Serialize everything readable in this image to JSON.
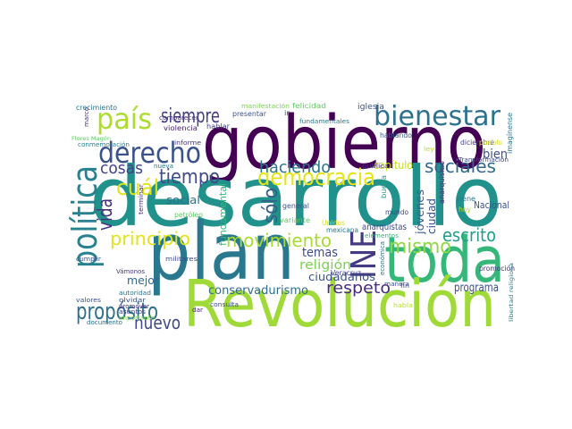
{
  "chart_data": {
    "type": "wordcloud",
    "background": "#ffffff",
    "words": [
      {
        "text": "gobierno",
        "color": "#440154"
      },
      {
        "text": "desarrollo",
        "color": "#21918c"
      },
      {
        "text": "plan",
        "color": "#2a788e"
      },
      {
        "text": "toda",
        "color": "#35b779"
      },
      {
        "text": "Revolución",
        "color": "#a0da39"
      },
      {
        "text": "política",
        "color": "#26828e"
      },
      {
        "text": "país",
        "color": "#addc30"
      },
      {
        "text": "siempre",
        "color": "#433e85"
      },
      {
        "text": "derecho",
        "color": "#3b528b"
      },
      {
        "text": "bienestar",
        "color": "#2c728e"
      },
      {
        "text": "democracia",
        "color": "#e5e419"
      },
      {
        "text": "cosas",
        "color": "#414487"
      },
      {
        "text": "cuál",
        "color": "#dde318"
      },
      {
        "text": "tiempo",
        "color": "#3e4a89"
      },
      {
        "text": "vida",
        "color": "#46337e"
      },
      {
        "text": "haciendo",
        "color": "#2a788e"
      },
      {
        "text": "sociales",
        "color": "#31688e"
      },
      {
        "text": "bien",
        "color": "#3b528b"
      },
      {
        "text": "principio",
        "color": "#e2e418"
      },
      {
        "text": "movimiento",
        "color": "#a8db34"
      },
      {
        "text": "mismo",
        "color": "#8fd744"
      },
      {
        "text": "escrito",
        "color": "#1f9e89"
      },
      {
        "text": "sólo",
        "color": "#355f8d"
      },
      {
        "text": "INE",
        "color": "#443983"
      },
      {
        "text": "propósito",
        "color": "#2c728e"
      },
      {
        "text": "nuevo",
        "color": "#3f4889"
      },
      {
        "text": "respeto",
        "color": "#472d7b"
      },
      {
        "text": "religión",
        "color": "#7ad151"
      },
      {
        "text": "temas",
        "color": "#3e4c8a"
      },
      {
        "text": "ciudadanos",
        "color": "#3b528b"
      },
      {
        "text": "conservadurismo",
        "color": "#2e6e8e"
      },
      {
        "text": "programa",
        "color": "#3d4e8a"
      },
      {
        "text": "capítulo",
        "color": "#c2df23"
      },
      {
        "text": "Nacional",
        "color": "#3b528b"
      },
      {
        "text": "ciudad",
        "color": "#3b528b"
      },
      {
        "text": "jóvenes",
        "color": "#355f8d"
      },
      {
        "text": "fundamental",
        "color": "#35b779"
      },
      {
        "text": "social",
        "color": "#2d708e"
      },
      {
        "text": "mejor",
        "color": "#31688e"
      },
      {
        "text": "anarquistas",
        "color": "#3e4a89"
      },
      {
        "text": "anarquismo",
        "color": "#482878"
      },
      {
        "text": "petróleo",
        "color": "#5ec962"
      },
      {
        "text": "general",
        "color": "#3b528b"
      },
      {
        "text": "variante",
        "color": "#5ec962"
      },
      {
        "text": "Unidos",
        "color": "#d8e219"
      },
      {
        "text": "mexicana",
        "color": "#2a788e"
      },
      {
        "text": "Veracruz",
        "color": "#3e4a89"
      },
      {
        "text": "mundo",
        "color": "#414487"
      },
      {
        "text": "hoy",
        "color": "#b5de2b"
      },
      {
        "text": "viene",
        "color": "#2a788e"
      },
      {
        "text": "buena",
        "color": "#1f9e89"
      },
      {
        "text": "pública",
        "color": "#46327e"
      },
      {
        "text": "crecimiento",
        "color": "#2c728e"
      },
      {
        "text": "manifestación",
        "color": "#7ad151"
      },
      {
        "text": "felicidad",
        "color": "#5ec962"
      },
      {
        "text": "iglesia",
        "color": "#3b528b"
      },
      {
        "text": "marco",
        "color": "#46337e"
      },
      {
        "text": "fundamentales",
        "color": "#2a788e"
      },
      {
        "text": "diciembre",
        "color": "#433e85"
      },
      {
        "text": "imagínense",
        "color": "#2a788e"
      },
      {
        "text": "Flores Magón",
        "color": "#5ec962"
      },
      {
        "text": "conmemoración",
        "color": "#26828e"
      },
      {
        "text": "comparecer",
        "color": "#46327e"
      },
      {
        "text": "presentar",
        "color": "#3b528b"
      },
      {
        "text": "ir",
        "color": "#355f8d"
      },
      {
        "text": "violencia",
        "color": "#482173"
      },
      {
        "text": "hablar",
        "color": "#414487"
      },
      {
        "text": "informe",
        "color": "#46337e"
      },
      {
        "text": "hablando",
        "color": "#355f8d"
      },
      {
        "text": "pueblo",
        "color": "#d8e219"
      },
      {
        "text": "Transformación",
        "color": "#3e4a89"
      },
      {
        "text": "nueva",
        "color": "#2a788e"
      },
      {
        "text": "ley",
        "color": "#b5de2b"
      },
      {
        "text": "terminar",
        "color": "#482878"
      },
      {
        "text": "cumplir",
        "color": "#3b528b"
      },
      {
        "text": "Vámonos",
        "color": "#46337e"
      },
      {
        "text": "militares",
        "color": "#3e4a89"
      },
      {
        "text": "autoridad",
        "color": "#2c728e"
      },
      {
        "text": "olvidar",
        "color": "#3b528b"
      },
      {
        "text": "promover",
        "color": "#472d7b"
      },
      {
        "text": "asuntos",
        "color": "#433e85"
      },
      {
        "text": "valores",
        "color": "#3b528b"
      },
      {
        "text": "importante",
        "color": "#86d549"
      },
      {
        "text": "documento",
        "color": "#2c728e"
      },
      {
        "text": "dar",
        "color": "#482878"
      },
      {
        "text": "consulta",
        "color": "#3e4a89"
      },
      {
        "text": "elementos",
        "color": "#35b779"
      },
      {
        "text": "económica",
        "color": "#2c728e"
      },
      {
        "text": "manera",
        "color": "#3b528b"
      },
      {
        "text": "fin",
        "color": "#414487"
      },
      {
        "text": "habla",
        "color": "#b5de2b"
      },
      {
        "text": "promoción",
        "color": "#46337e"
      },
      {
        "text": "libertad religiosa",
        "color": "#2a788e"
      }
    ]
  }
}
